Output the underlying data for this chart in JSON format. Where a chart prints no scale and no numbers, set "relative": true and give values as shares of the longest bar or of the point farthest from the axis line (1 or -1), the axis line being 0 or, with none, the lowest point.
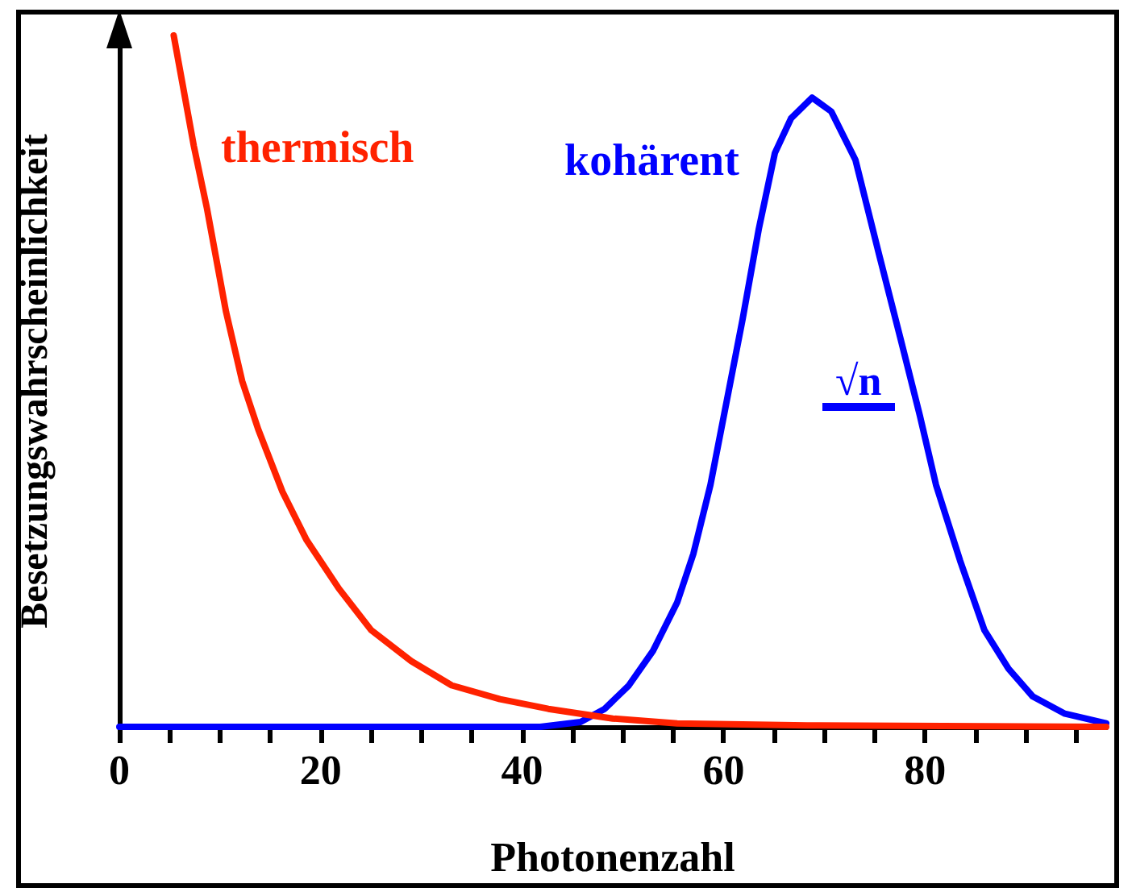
{
  "chart_data": {
    "type": "line",
    "xlabel": "Photonenzahl",
    "ylabel": "Besetzungswahrscheinlichkeit",
    "relative": true,
    "xlim": [
      0,
      98
    ],
    "xticks": [
      0,
      {
        "value": 5,
        "label": null
      },
      {
        "value": 10,
        "label": null
      },
      {
        "value": 15,
        "label": null
      },
      20,
      {
        "value": 25,
        "label": null
      },
      {
        "value": 30,
        "label": null
      },
      {
        "value": 35,
        "label": null
      },
      40,
      {
        "value": 45,
        "label": null
      },
      {
        "value": 50,
        "label": null
      },
      {
        "value": 55,
        "label": null
      },
      60,
      {
        "value": 65,
        "label": null
      },
      {
        "value": 70,
        "label": null
      },
      {
        "value": 75,
        "label": null
      },
      80,
      {
        "value": 85,
        "label": null
      },
      {
        "value": 90,
        "label": null
      },
      {
        "value": 95,
        "label": null
      }
    ],
    "grid": false,
    "legend": false,
    "marker": "none",
    "line_style": "solid",
    "annotations": [
      "√n"
    ],
    "series": [
      {
        "name": "kohärent",
        "color": "#0000ff",
        "x": [
          0,
          41.8,
          45.8,
          48.2,
          50.6,
          53,
          55.4,
          57,
          58.7,
          60.3,
          61.9,
          63.5,
          65.1,
          66.7,
          68.8,
          70.7,
          73.1,
          75.5,
          77.6,
          79.5,
          81.1,
          83.5,
          85.9,
          88.3,
          90.7,
          93.9,
          98
        ],
        "values": [
          0,
          0,
          0.007,
          0.026,
          0.06,
          0.11,
          0.18,
          0.25,
          0.35,
          0.47,
          0.59,
          0.72,
          0.83,
          0.88,
          0.91,
          0.89,
          0.82,
          0.68,
          0.56,
          0.45,
          0.35,
          0.24,
          0.14,
          0.084,
          0.044,
          0.019,
          0.005
        ]
      },
      {
        "name": "thermisch",
        "color": "#ff2200",
        "x": [
          5.4,
          7.4,
          8.7,
          10.6,
          12.2,
          13.8,
          16.2,
          18.6,
          21.8,
          25,
          29,
          33,
          37.8,
          42.6,
          49,
          55.4,
          68.3,
          98
        ],
        "values": [
          1,
          0.84,
          0.75,
          0.6,
          0.5,
          0.43,
          0.34,
          0.27,
          0.2,
          0.14,
          0.095,
          0.06,
          0.04,
          0.026,
          0.012,
          0.005,
          0.002,
          0
        ]
      }
    ]
  }
}
